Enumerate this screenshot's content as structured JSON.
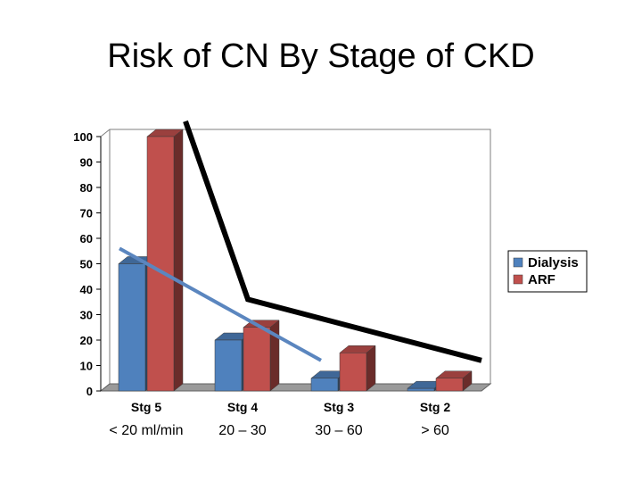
{
  "slide": {
    "title": "Risk of CN By Stage of CKD"
  },
  "chart_data": {
    "type": "bar",
    "style": "3d-clustered-column",
    "categories": [
      "Stg 5",
      "Stg 4",
      "Stg 3",
      "Stg 2"
    ],
    "category_sublabels": [
      "< 20 ml/min",
      "20 – 30",
      "30 – 60",
      "> 60"
    ],
    "series": [
      {
        "name": "Dialysis",
        "color": "#4f81bd",
        "values": [
          50,
          20,
          5,
          1
        ]
      },
      {
        "name": "ARF",
        "color": "#c0504d",
        "values": [
          100,
          25,
          15,
          5
        ]
      }
    ],
    "ylim": [
      0,
      100
    ],
    "yticks": [
      0,
      10,
      20,
      30,
      40,
      50,
      60,
      70,
      80,
      90,
      100
    ],
    "legend_position": "right",
    "grid": false,
    "annotations": [
      {
        "type": "trend-line",
        "color": "#000000",
        "points": [
          [
            "Stg 5",
            106
          ],
          [
            "Stg 4",
            36
          ],
          [
            "Stg 2",
            12
          ]
        ]
      },
      {
        "type": "trend-line",
        "color": "#5b86bf",
        "points": [
          [
            "Stg 5",
            56
          ],
          [
            "Stg 3",
            12
          ]
        ]
      }
    ]
  }
}
